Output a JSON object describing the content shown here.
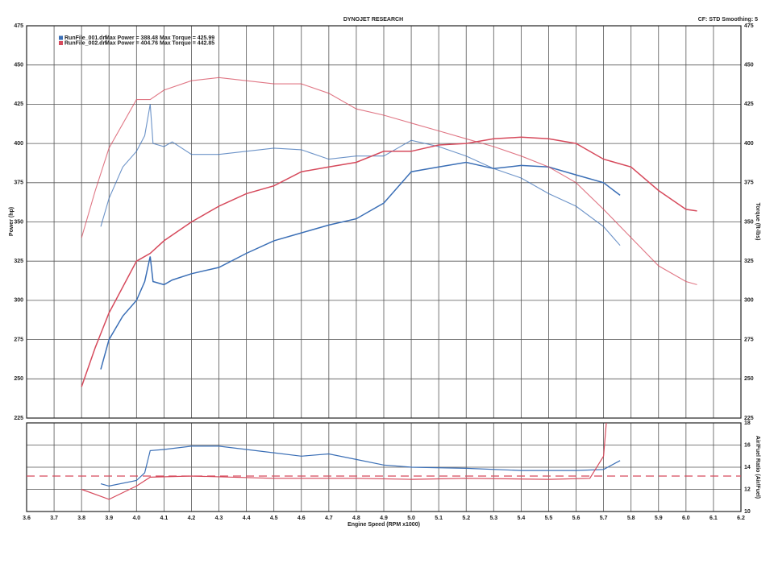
{
  "chart_data": [
    {
      "type": "line",
      "title": "DYNOJET RESEARCH",
      "subtitle": "CF: STD  Smoothing: 5",
      "y_label": "Power (hp)",
      "y2_label": "Torque (ft-lbs)",
      "xlim": [
        3.6,
        6.2
      ],
      "ylim": [
        225,
        475
      ],
      "y2lim": [
        225,
        475
      ],
      "xticks": [
        3.6,
        3.7,
        3.8,
        3.9,
        {
          "value": 4,
          "label": "4.0"
        },
        4.1,
        4.2,
        4.3,
        4.4,
        4.5,
        4.6,
        4.7,
        4.8,
        4.9,
        {
          "value": 5,
          "label": "5.0"
        },
        5.1,
        5.2,
        5.3,
        5.4,
        5.5,
        5.6,
        5.7,
        5.8,
        5.9,
        {
          "value": 6,
          "label": "6.0"
        },
        6.1,
        6.2
      ],
      "yticks": [
        225,
        250,
        275,
        300,
        325,
        350,
        375,
        400,
        425,
        450,
        475
      ],
      "y2ticks": [
        225,
        250,
        275,
        300,
        325,
        350,
        375,
        400,
        425,
        450,
        475
      ],
      "grid": true,
      "series": [
        {
          "name": "RunFile_001.drf",
          "max_power": "Max Power = 388.48",
          "max_torque": "Max Torque = 425.99",
          "color": "#3b6fb6",
          "x": [
            3.87,
            3.9,
            3.95,
            4.0,
            4.03,
            4.05,
            4.06,
            4.1,
            4.13,
            4.2,
            4.3,
            4.4,
            4.5,
            4.6,
            4.7,
            4.8,
            4.9,
            5.0,
            5.1,
            5.2,
            5.3,
            5.4,
            5.5,
            5.6,
            5.7,
            5.76
          ],
          "power": [
            256,
            275,
            290,
            300,
            312,
            328,
            312,
            310,
            313,
            317,
            321,
            330,
            338,
            343,
            348,
            352,
            362,
            382,
            385,
            388,
            384,
            386,
            385,
            380,
            375,
            367
          ],
          "torque": [
            347,
            365,
            385,
            395,
            405,
            425,
            400,
            398,
            401,
            393,
            393,
            395,
            397,
            396,
            390,
            392,
            392,
            402,
            398,
            392,
            384,
            378,
            368,
            360,
            347,
            335
          ]
        },
        {
          "name": "RunFile_002.drf",
          "max_power": "Max Power = 404.76",
          "max_torque": "Max Torque = 442.85",
          "color": "#d64a5c",
          "x": [
            3.8,
            3.85,
            3.9,
            4.0,
            4.05,
            4.1,
            4.2,
            4.3,
            4.4,
            4.5,
            4.6,
            4.7,
            4.8,
            4.9,
            5.0,
            5.1,
            5.2,
            5.3,
            5.4,
            5.5,
            5.6,
            5.7,
            5.8,
            5.9,
            6.0,
            6.04
          ],
          "power": [
            245,
            270,
            292,
            325,
            330,
            338,
            350,
            360,
            368,
            373,
            382,
            385,
            388,
            395,
            395,
            399,
            400,
            403,
            404,
            403,
            400,
            390,
            385,
            370,
            358,
            357
          ],
          "torque": [
            340,
            370,
            397,
            428,
            428,
            434,
            440,
            442,
            440,
            438,
            438,
            432,
            422,
            418,
            413,
            408,
            403,
            398,
            392,
            385,
            375,
            358,
            340,
            322,
            312,
            310
          ]
        }
      ]
    },
    {
      "type": "line",
      "x_label": "Engine Speed (RPM x1000)",
      "y2_label": "Air/Fuel Ratio (Air/Fuel)",
      "xlim": [
        3.6,
        6.2
      ],
      "y2lim": [
        10,
        18
      ],
      "y2ticks": [
        10,
        12,
        14,
        16,
        18
      ],
      "reference": 13.2,
      "series": [
        {
          "color": "#3b6fb6",
          "x": [
            3.87,
            3.9,
            4.0,
            4.03,
            4.05,
            4.1,
            4.2,
            4.3,
            4.4,
            4.5,
            4.6,
            4.7,
            4.8,
            4.9,
            5.0,
            5.2,
            5.4,
            5.6,
            5.7,
            5.76
          ],
          "values": [
            12.5,
            12.3,
            12.8,
            13.5,
            15.5,
            15.6,
            15.9,
            15.9,
            15.6,
            15.3,
            15.0,
            15.2,
            14.7,
            14.2,
            14.0,
            13.9,
            13.7,
            13.7,
            13.8,
            14.6
          ]
        },
        {
          "color": "#d64a5c",
          "x": [
            3.8,
            3.9,
            4.0,
            4.05,
            4.2,
            4.5,
            4.8,
            5.0,
            5.2,
            5.5,
            5.65,
            5.7,
            5.71
          ],
          "values": [
            12.0,
            11.1,
            12.3,
            13.1,
            13.2,
            13.0,
            13.0,
            12.9,
            13.0,
            12.9,
            13.0,
            15.0,
            18.0
          ]
        }
      ]
    }
  ]
}
